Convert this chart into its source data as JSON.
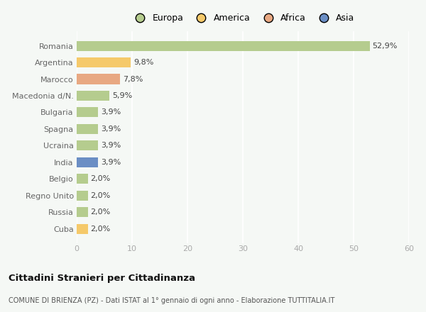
{
  "categories": [
    "Romania",
    "Argentina",
    "Marocco",
    "Macedonia d/N.",
    "Bulgaria",
    "Spagna",
    "Ucraina",
    "India",
    "Belgio",
    "Regno Unito",
    "Russia",
    "Cuba"
  ],
  "values": [
    52.9,
    9.8,
    7.8,
    5.9,
    3.9,
    3.9,
    3.9,
    3.9,
    2.0,
    2.0,
    2.0,
    2.0
  ],
  "labels": [
    "52,9%",
    "9,8%",
    "7,8%",
    "5,9%",
    "3,9%",
    "3,9%",
    "3,9%",
    "3,9%",
    "2,0%",
    "2,0%",
    "2,0%",
    "2,0%"
  ],
  "colors": [
    "#b5cc8e",
    "#f5c96a",
    "#e8a882",
    "#b5cc8e",
    "#b5cc8e",
    "#b5cc8e",
    "#b5cc8e",
    "#6b8ec4",
    "#b5cc8e",
    "#b5cc8e",
    "#b5cc8e",
    "#f5c96a"
  ],
  "legend_labels": [
    "Europa",
    "America",
    "Africa",
    "Asia"
  ],
  "legend_colors": [
    "#b5cc8e",
    "#f5c96a",
    "#e8a882",
    "#6b8ec4"
  ],
  "title1": "Cittadini Stranieri per Cittadinanza",
  "title2": "COMUNE DI BRIENZA (PZ) - Dati ISTAT al 1° gennaio di ogni anno - Elaborazione TUTTITALIA.IT",
  "xlim": [
    0,
    60
  ],
  "xticks": [
    0,
    10,
    20,
    30,
    40,
    50,
    60
  ],
  "background_color": "#f5f8f5",
  "plot_bg_color": "#f5f8f5",
  "grid_color": "#ffffff",
  "bar_height": 0.6,
  "label_fontsize": 8,
  "ytick_fontsize": 8,
  "xtick_fontsize": 8,
  "legend_fontsize": 9
}
